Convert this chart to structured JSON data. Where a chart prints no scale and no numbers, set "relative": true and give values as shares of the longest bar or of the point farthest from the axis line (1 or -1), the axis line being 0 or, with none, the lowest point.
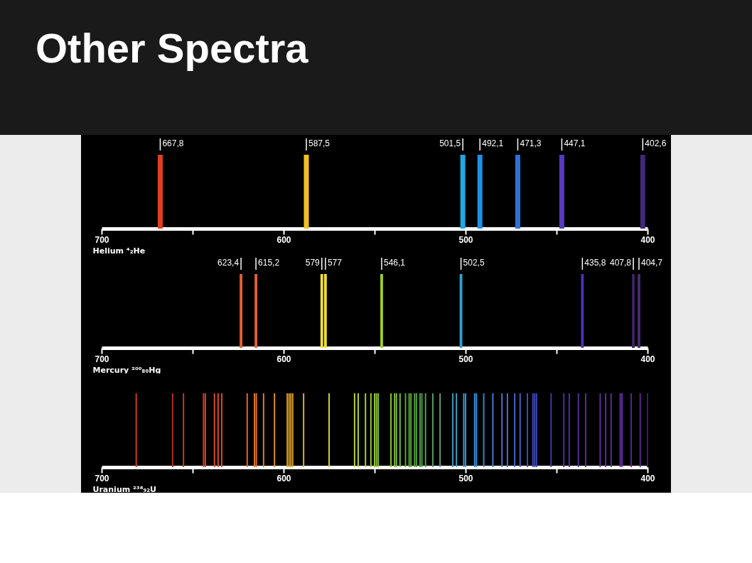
{
  "chart_data": [
    {
      "type": "bar",
      "title": "Other Spectra",
      "relative": true,
      "xlabel": "Helium ⁴₂He",
      "x": [
        667.8,
        587.5,
        501.5,
        492.1,
        471.3,
        447.1,
        402.6
      ],
      "values": [
        1,
        1,
        1,
        1,
        1,
        1,
        1
      ],
      "colors": [
        "#e04020",
        "#f0c020",
        "#20a8e0",
        "#2090e8",
        "#3070d8",
        "#5838c0",
        "#402878"
      ],
      "xlim": [
        700,
        400
      ],
      "xticks": [
        700,
        {
          "value": 650,
          "label": null
        },
        600,
        {
          "value": 550,
          "label": null
        },
        500,
        {
          "value": 450,
          "label": null
        },
        400
      ],
      "annotations": [
        {
          "text": "667,8",
          "x": 667.8,
          "y": 1
        },
        {
          "text": "587,5",
          "x": 587.5,
          "y": 1
        },
        {
          "text": "501,5",
          "x": 501.5,
          "y": 1
        },
        {
          "text": "492,1",
          "x": 492.1,
          "y": 1
        },
        {
          "text": "471,3",
          "x": 471.3,
          "y": 1
        },
        {
          "text": "447,1",
          "x": 447.1,
          "y": 1
        },
        {
          "text": "402,6",
          "x": 402.6,
          "y": 1
        }
      ]
    },
    {
      "type": "bar",
      "relative": true,
      "xlabel": "Mercury ²⁰⁰₈₀Hg",
      "x": [
        623.4,
        615.2,
        579,
        577,
        546.1,
        502.5,
        435.8,
        407.8,
        404.7
      ],
      "values": [
        1,
        1,
        1,
        1,
        1,
        1,
        1,
        1,
        1
      ],
      "colors": [
        "#e86030",
        "#e86030",
        "#f0e030",
        "#f0e030",
        "#a0d020",
        "#30a0d0",
        "#5030c0",
        "#3c2464",
        "#4a2a70"
      ],
      "xlim": [
        700,
        400
      ],
      "xticks": [
        700,
        {
          "value": 650,
          "label": null
        },
        600,
        {
          "value": 550,
          "label": null
        },
        500,
        {
          "value": 450,
          "label": null
        },
        400
      ],
      "annotations": [
        {
          "text": "623,4",
          "x": 623.4,
          "y": 1
        },
        {
          "text": "615,2",
          "x": 615.2,
          "y": 1
        },
        {
          "text": "579",
          "x": 579,
          "y": 1
        },
        {
          "text": "577",
          "x": 577,
          "y": 1
        },
        {
          "text": "546,1",
          "x": 546.1,
          "y": 1
        },
        {
          "text": "502,5",
          "x": 502.5,
          "y": 1
        },
        {
          "text": "435,8",
          "x": 435.8,
          "y": 1
        },
        {
          "text": "407,8",
          "x": 407.8,
          "y": 1
        },
        {
          "text": "404,7",
          "x": 404.7,
          "y": 1
        }
      ]
    },
    {
      "type": "bar",
      "relative": true,
      "xlabel": "Uranium ²³⁸₉₂U",
      "x": [
        681,
        661,
        655,
        644,
        643,
        638,
        636,
        634,
        620,
        616,
        615,
        611,
        605,
        598,
        597,
        596,
        595,
        589,
        575,
        561,
        559,
        555,
        552,
        550,
        549,
        548,
        541,
        539,
        538,
        536,
        533,
        531,
        530,
        528,
        527,
        525,
        524,
        522,
        518,
        514,
        507,
        505,
        501,
        500,
        495,
        494,
        490,
        485,
        480,
        477,
        473,
        470,
        466,
        463,
        462,
        461,
        453,
        446,
        443,
        438,
        434,
        426,
        423,
        420,
        415,
        414,
        409,
        404,
        400
      ],
      "values": [
        1,
        1,
        1,
        1,
        1,
        1,
        1,
        1,
        1,
        1,
        1,
        1,
        1,
        1,
        1,
        1,
        1,
        1,
        1,
        1,
        1,
        1,
        1,
        1,
        1,
        1,
        1,
        1,
        1,
        1,
        1,
        1,
        1,
        1,
        1,
        1,
        1,
        1,
        1,
        1,
        1,
        1,
        1,
        1,
        1,
        1,
        1,
        1,
        1,
        1,
        1,
        1,
        1,
        1,
        1,
        1,
        1,
        1,
        1,
        1,
        1,
        1,
        1,
        1,
        1,
        1,
        1,
        1,
        1
      ],
      "colors": [
        "#d83a20",
        "#b83020",
        "#d03a20",
        "#e04020",
        "#e04020",
        "#e84a20",
        "#e84a20",
        "#e84a20",
        "#e86a28",
        "#e87828",
        "#e87828",
        "#e88028",
        "#e89028",
        "#e0a028",
        "#e0a028",
        "#e0a028",
        "#e0a028",
        "#e0b828",
        "#d8d838",
        "#b8d838",
        "#b8d838",
        "#a8d038",
        "#98c838",
        "#90c838",
        "#90c838",
        "#88c038",
        "#88c838",
        "#80c038",
        "#80c038",
        "#78b838",
        "#60a838",
        "#60a838",
        "#58a838",
        "#58a840",
        "#50a040",
        "#50a040",
        "#50a040",
        "#50a050",
        "#58a068",
        "#60a080",
        "#40a0c0",
        "#40a0c8",
        "#3898d0",
        "#3898d0",
        "#3890e0",
        "#3890e0",
        "#3888e0",
        "#4080d8",
        "#4878d0",
        "#4870d0",
        "#4868c8",
        "#4860c8",
        "#4050c0",
        "#4048b8",
        "#4048b8",
        "#4048b8",
        "#4838a8",
        "#5030a0",
        "#5030a0",
        "#5830a0",
        "#5830a0",
        "#6030a0",
        "#6030a0",
        "#5830a0",
        "#6830a8",
        "#6830a8",
        "#5a2898",
        "#5a2890",
        "#3a2060"
      ],
      "xlim": [
        700,
        400
      ],
      "xticks": [
        700,
        {
          "value": 650,
          "label": null
        },
        600,
        {
          "value": 550,
          "label": null
        },
        500,
        {
          "value": 450,
          "label": null
        },
        400
      ]
    }
  ]
}
